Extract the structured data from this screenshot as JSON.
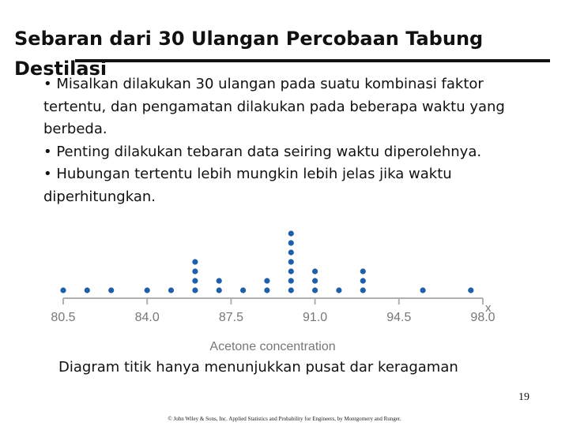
{
  "slide": {
    "title": "Sebaran dari 30 Ulangan Percobaan Tabung Destilasi",
    "bullets": [
      "• Misalkan dilakukan 30 ulangan pada suatu kombinasi faktor tertentu, dan pengamatan dilakukan pada beberapa waktu yang berbeda.",
      "• Penting dilakukan tebaran data seiring waktu diperolehnya.",
      "• Hubungan tertentu lebih mungkin lebih jelas jika waktu diperhitungkan."
    ],
    "caption": "Diagram titik hanya menunjukkan pusat dar keragaman",
    "page_number": "19",
    "footer": "© John Wiley & Sons, Inc.  Applied Statistics and Probability for Engineers, by Montgomery and Runger."
  },
  "chart_data": {
    "type": "scatter",
    "subtype": "dot-plot",
    "xlabel": "Acetone concentration",
    "axis_symbol": "x",
    "xlim": [
      80.5,
      98.0
    ],
    "ticks": [
      80.5,
      84.0,
      87.5,
      91.0,
      94.5,
      98.0
    ],
    "tick_labels": [
      "80.5",
      "84.0",
      "87.5",
      "91.0",
      "94.5",
      "98.0"
    ],
    "dot_color": "#1f5fa8",
    "axis_color": "#b0b0b0",
    "points": [
      {
        "x": 80.5,
        "count": 1
      },
      {
        "x": 81.5,
        "count": 1
      },
      {
        "x": 82.5,
        "count": 1
      },
      {
        "x": 84.0,
        "count": 1
      },
      {
        "x": 85.0,
        "count": 1
      },
      {
        "x": 86.0,
        "count": 4
      },
      {
        "x": 87.0,
        "count": 2
      },
      {
        "x": 88.0,
        "count": 1
      },
      {
        "x": 89.0,
        "count": 2
      },
      {
        "x": 90.0,
        "count": 7
      },
      {
        "x": 91.0,
        "count": 3
      },
      {
        "x": 92.0,
        "count": 1
      },
      {
        "x": 93.0,
        "count": 3
      },
      {
        "x": 95.5,
        "count": 1
      },
      {
        "x": 97.5,
        "count": 1
      }
    ]
  }
}
